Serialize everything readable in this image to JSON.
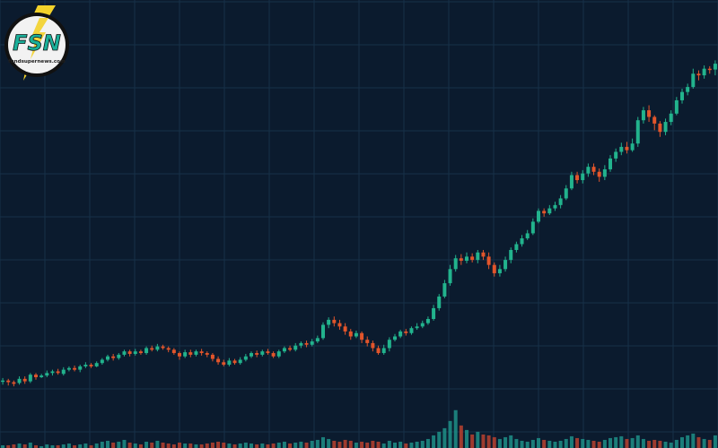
{
  "logo": {
    "name": "FSN",
    "site": "fundsupernews.com",
    "colors": {
      "ring": "#f2f2f2",
      "text": "#1bb09a",
      "bolt": "#f3d22a",
      "outline": "#111111"
    }
  },
  "chart_data": {
    "type": "candlestick",
    "title": "",
    "xlabel": "",
    "ylabel": "",
    "grid": true,
    "axis_labels_shown": false,
    "colors": {
      "background": "#0b1b2e",
      "grid": "#173048",
      "up": "#22b38d",
      "down": "#e2552b",
      "volume_up": "#1f8f87",
      "volume_down": "#b8412f"
    },
    "ylim": [
      0,
      500
    ],
    "volume_ylim": [
      0,
      140
    ],
    "candles": [
      [
        10,
        50,
        51,
        54,
        46,
        3
      ],
      [
        11,
        51,
        49,
        53,
        45,
        3
      ],
      [
        12,
        49,
        47,
        51,
        44,
        4
      ],
      [
        13,
        48,
        53,
        56,
        46,
        5
      ],
      [
        14,
        53,
        50,
        56,
        47,
        4
      ],
      [
        15,
        50,
        58,
        60,
        48,
        6
      ],
      [
        16,
        58,
        55,
        60,
        52,
        3
      ],
      [
        17,
        55,
        57,
        59,
        54,
        2
      ],
      [
        18,
        57,
        60,
        63,
        55,
        4
      ],
      [
        19,
        60,
        62,
        64,
        57,
        3
      ],
      [
        20,
        62,
        60,
        65,
        58,
        3
      ],
      [
        21,
        59,
        64,
        67,
        57,
        4
      ],
      [
        22,
        64,
        66,
        68,
        62,
        5
      ],
      [
        23,
        66,
        64,
        69,
        62,
        3
      ],
      [
        24,
        64,
        68,
        70,
        61,
        4
      ],
      [
        25,
        68,
        70,
        73,
        66,
        5
      ],
      [
        26,
        70,
        68,
        72,
        66,
        3
      ],
      [
        27,
        68,
        72,
        74,
        67,
        5
      ],
      [
        28,
        72,
        76,
        78,
        70,
        7
      ],
      [
        29,
        76,
        80,
        82,
        74,
        8
      ],
      [
        30,
        80,
        78,
        83,
        75,
        6
      ],
      [
        31,
        78,
        82,
        84,
        76,
        7
      ],
      [
        32,
        82,
        86,
        88,
        80,
        9
      ],
      [
        33,
        86,
        83,
        88,
        80,
        6
      ],
      [
        34,
        83,
        86,
        89,
        81,
        5
      ],
      [
        35,
        86,
        84,
        88,
        82,
        4
      ],
      [
        36,
        84,
        90,
        92,
        82,
        7
      ],
      [
        37,
        90,
        88,
        93,
        86,
        6
      ],
      [
        38,
        88,
        92,
        95,
        86,
        8
      ],
      [
        39,
        92,
        90,
        94,
        88,
        6
      ],
      [
        40,
        90,
        88,
        92,
        85,
        5
      ],
      [
        41,
        88,
        84,
        90,
        82,
        4
      ],
      [
        42,
        84,
        80,
        86,
        76,
        6
      ],
      [
        43,
        80,
        85,
        88,
        78,
        5
      ],
      [
        44,
        85,
        82,
        88,
        79,
        5
      ],
      [
        45,
        82,
        86,
        88,
        80,
        4
      ],
      [
        46,
        86,
        84,
        89,
        81,
        4
      ],
      [
        47,
        84,
        82,
        86,
        79,
        5
      ],
      [
        48,
        82,
        77,
        84,
        74,
        6
      ],
      [
        49,
        77,
        73,
        80,
        70,
        7
      ],
      [
        50,
        73,
        70,
        76,
        68,
        6
      ],
      [
        51,
        70,
        75,
        78,
        68,
        5
      ],
      [
        52,
        75,
        72,
        77,
        70,
        4
      ],
      [
        53,
        72,
        76,
        79,
        70,
        5
      ],
      [
        54,
        76,
        80,
        83,
        74,
        6
      ],
      [
        55,
        80,
        84,
        86,
        78,
        5
      ],
      [
        56,
        84,
        82,
        87,
        79,
        4
      ],
      [
        57,
        82,
        86,
        88,
        80,
        5
      ],
      [
        58,
        86,
        84,
        89,
        82,
        4
      ],
      [
        59,
        84,
        80,
        86,
        78,
        5
      ],
      [
        60,
        80,
        86,
        88,
        78,
        6
      ],
      [
        61,
        86,
        90,
        92,
        84,
        7
      ],
      [
        62,
        90,
        88,
        93,
        86,
        5
      ],
      [
        63,
        88,
        93,
        96,
        86,
        6
      ],
      [
        64,
        93,
        96,
        98,
        90,
        7
      ],
      [
        65,
        96,
        94,
        99,
        91,
        6
      ],
      [
        66,
        94,
        98,
        101,
        92,
        8
      ],
      [
        67,
        98,
        102,
        105,
        96,
        9
      ],
      [
        68,
        102,
        118,
        121,
        100,
        12
      ],
      [
        69,
        118,
        124,
        127,
        114,
        10
      ],
      [
        70,
        124,
        120,
        128,
        116,
        8
      ],
      [
        71,
        120,
        116,
        124,
        112,
        7
      ],
      [
        72,
        116,
        110,
        120,
        106,
        9
      ],
      [
        73,
        110,
        104,
        113,
        100,
        8
      ],
      [
        74,
        104,
        108,
        111,
        102,
        6
      ],
      [
        75,
        108,
        100,
        110,
        96,
        7
      ],
      [
        76,
        100,
        96,
        104,
        92,
        6
      ],
      [
        77,
        96,
        90,
        99,
        86,
        8
      ],
      [
        78,
        90,
        84,
        93,
        82,
        7
      ],
      [
        79,
        84,
        90,
        94,
        82,
        5
      ],
      [
        80,
        90,
        100,
        103,
        86,
        8
      ],
      [
        81,
        100,
        104,
        107,
        98,
        6
      ],
      [
        82,
        104,
        110,
        112,
        102,
        7
      ],
      [
        83,
        110,
        108,
        113,
        105,
        5
      ],
      [
        84,
        108,
        114,
        116,
        106,
        6
      ],
      [
        85,
        114,
        116,
        120,
        112,
        7
      ],
      [
        86,
        116,
        120,
        123,
        114,
        8
      ],
      [
        87,
        120,
        125,
        128,
        118,
        10
      ],
      [
        88,
        125,
        138,
        142,
        123,
        14
      ],
      [
        89,
        138,
        152,
        155,
        135,
        18
      ],
      [
        90,
        152,
        168,
        172,
        150,
        22
      ],
      [
        91,
        168,
        185,
        190,
        165,
        30
      ],
      [
        92,
        185,
        198,
        202,
        182,
        42
      ],
      [
        93,
        198,
        195,
        203,
        190,
        25
      ],
      [
        94,
        195,
        200,
        205,
        192,
        20
      ],
      [
        95,
        200,
        196,
        204,
        193,
        15
      ],
      [
        96,
        196,
        205,
        208,
        192,
        18
      ],
      [
        97,
        205,
        200,
        208,
        196,
        15
      ],
      [
        98,
        200,
        190,
        205,
        185,
        14
      ],
      [
        99,
        190,
        180,
        193,
        176,
        12
      ],
      [
        100,
        180,
        185,
        190,
        176,
        10
      ],
      [
        101,
        185,
        196,
        200,
        182,
        12
      ],
      [
        102,
        196,
        208,
        211,
        192,
        14
      ],
      [
        103,
        208,
        215,
        218,
        205,
        10
      ],
      [
        104,
        215,
        222,
        226,
        212,
        8
      ],
      [
        105,
        222,
        228,
        232,
        220,
        7
      ],
      [
        106,
        228,
        242,
        246,
        226,
        9
      ],
      [
        107,
        242,
        255,
        258,
        240,
        11
      ],
      [
        108,
        255,
        252,
        258,
        248,
        9
      ],
      [
        109,
        252,
        258,
        262,
        250,
        8
      ],
      [
        110,
        258,
        262,
        266,
        255,
        7
      ],
      [
        111,
        262,
        270,
        274,
        258,
        8
      ],
      [
        112,
        270,
        282,
        286,
        268,
        10
      ],
      [
        113,
        282,
        298,
        302,
        280,
        13
      ],
      [
        114,
        298,
        292,
        302,
        288,
        11
      ],
      [
        115,
        292,
        300,
        304,
        288,
        10
      ],
      [
        116,
        300,
        308,
        312,
        296,
        9
      ],
      [
        117,
        308,
        302,
        312,
        298,
        8
      ],
      [
        118,
        302,
        296,
        306,
        290,
        7
      ],
      [
        119,
        296,
        305,
        310,
        292,
        9
      ],
      [
        120,
        305,
        318,
        322,
        302,
        11
      ],
      [
        121,
        318,
        326,
        330,
        314,
        12
      ],
      [
        122,
        326,
        332,
        337,
        322,
        13
      ],
      [
        123,
        332,
        328,
        338,
        324,
        10
      ],
      [
        124,
        328,
        336,
        342,
        326,
        11
      ],
      [
        125,
        336,
        364,
        368,
        332,
        14
      ],
      [
        126,
        364,
        376,
        380,
        360,
        10
      ],
      [
        127,
        376,
        368,
        382,
        362,
        8
      ],
      [
        128,
        368,
        360,
        370,
        352,
        9
      ],
      [
        129,
        360,
        350,
        363,
        344,
        8
      ],
      [
        130,
        350,
        362,
        366,
        346,
        7
      ],
      [
        131,
        362,
        372,
        376,
        358,
        6
      ],
      [
        132,
        372,
        388,
        392,
        370,
        9
      ],
      [
        133,
        388,
        398,
        402,
        384,
        12
      ],
      [
        134,
        398,
        404,
        408,
        394,
        14
      ],
      [
        135,
        404,
        420,
        426,
        402,
        16
      ],
      [
        136,
        420,
        418,
        424,
        412,
        12
      ],
      [
        137,
        418,
        426,
        430,
        414,
        10
      ],
      [
        138,
        426,
        425,
        429,
        420,
        9
      ],
      [
        139,
        425,
        432,
        436,
        418,
        14
      ]
    ]
  }
}
